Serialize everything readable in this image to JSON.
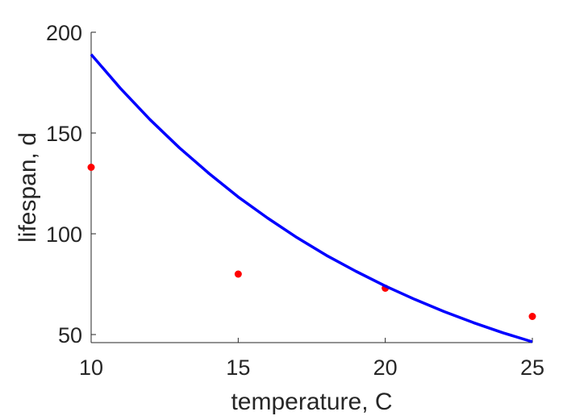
{
  "chart_data": {
    "type": "scatter",
    "xlabel": "temperature, C",
    "ylabel": "lifespan, d",
    "xlim": [
      10,
      25
    ],
    "ylim": [
      46,
      200
    ],
    "x_ticks": [
      "10",
      "15",
      "20",
      "25"
    ],
    "y_ticks": [
      "50",
      "100",
      "150",
      "200"
    ],
    "grid": false,
    "series": [
      {
        "kind": "points",
        "color": "#ff0000",
        "x": [
          10,
          15,
          20,
          25
        ],
        "y": [
          133,
          80,
          73,
          59
        ]
      },
      {
        "kind": "line",
        "color": "#0000ff",
        "x": [
          10,
          11,
          12,
          13,
          14,
          15,
          16,
          17,
          18,
          19,
          20,
          21,
          22,
          23,
          24,
          25
        ],
        "y": [
          189,
          172.1,
          156.7,
          142.7,
          130.0,
          118.3,
          107.8,
          98.1,
          89.3,
          81.4,
          74.1,
          67.5,
          61.4,
          55.9,
          50.9,
          46.4
        ]
      }
    ]
  }
}
